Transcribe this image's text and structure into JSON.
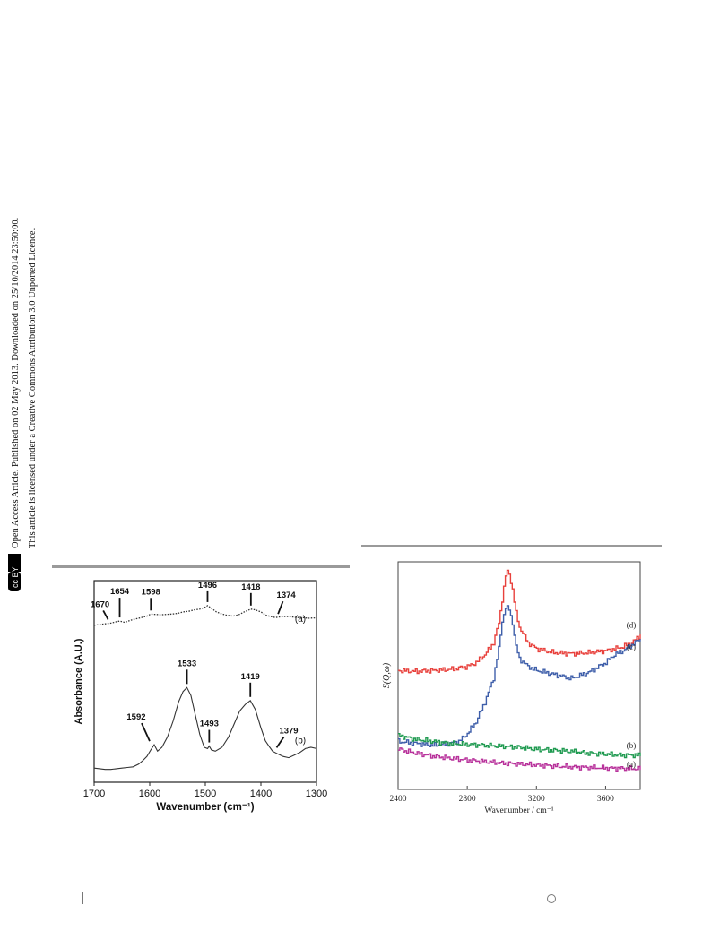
{
  "side_notice": {
    "line1": "Open Access Article. Published on 02 May 2013. Downloaded on 25/10/2014 23:50:00.",
    "line2": "This article is licensed under a Creative Commons Attribution 3.0 Unported Licence.",
    "license_badge": "cc BY"
  },
  "chart_data": [
    {
      "type": "line",
      "xlabel": "Wavenumber (cm⁻¹)",
      "ylabel": "Absorbance (A.U.)",
      "xlim": [
        1700,
        1300
      ],
      "x_reversed": true,
      "x_ticks": [
        1700,
        1600,
        1500,
        1400,
        1300
      ],
      "series": [
        {
          "name": "(a)",
          "style": "dotted",
          "x": [
            1700,
            1690,
            1680,
            1670,
            1660,
            1654,
            1645,
            1635,
            1625,
            1615,
            1605,
            1598,
            1590,
            1580,
            1570,
            1560,
            1550,
            1540,
            1530,
            1520,
            1510,
            1500,
            1496,
            1490,
            1480,
            1470,
            1460,
            1450,
            1440,
            1430,
            1418,
            1410,
            1400,
            1390,
            1380,
            1374,
            1365,
            1355,
            1345,
            1335,
            1325,
            1315,
            1305,
            1300
          ],
          "y": [
            0.58,
            0.59,
            0.6,
            0.61,
            0.63,
            0.64,
            0.62,
            0.65,
            0.67,
            0.69,
            0.71,
            0.74,
            0.735,
            0.73,
            0.735,
            0.74,
            0.75,
            0.77,
            0.78,
            0.8,
            0.81,
            0.84,
            0.86,
            0.83,
            0.77,
            0.74,
            0.72,
            0.71,
            0.73,
            0.77,
            0.81,
            0.8,
            0.77,
            0.72,
            0.7,
            0.69,
            0.7,
            0.705,
            0.7,
            0.69,
            0.69,
            0.68,
            0.685,
            0.68
          ]
        },
        {
          "name": "(b)",
          "style": "solid",
          "x": [
            1700,
            1690,
            1680,
            1670,
            1660,
            1650,
            1640,
            1630,
            1620,
            1612,
            1605,
            1598,
            1592,
            1586,
            1578,
            1568,
            1558,
            1548,
            1540,
            1533,
            1526,
            1518,
            1510,
            1502,
            1496,
            1493,
            1489,
            1482,
            1470,
            1458,
            1448,
            1438,
            1428,
            1419,
            1410,
            1400,
            1392,
            1384,
            1379,
            1370,
            1360,
            1350,
            1340,
            1330,
            1320,
            1310,
            1300
          ],
          "y": [
            0.04,
            0.035,
            0.03,
            0.03,
            0.035,
            0.04,
            0.045,
            0.05,
            0.07,
            0.1,
            0.13,
            0.18,
            0.22,
            0.17,
            0.2,
            0.28,
            0.4,
            0.55,
            0.63,
            0.66,
            0.6,
            0.45,
            0.3,
            0.2,
            0.19,
            0.21,
            0.18,
            0.17,
            0.2,
            0.28,
            0.38,
            0.48,
            0.53,
            0.56,
            0.49,
            0.35,
            0.25,
            0.2,
            0.17,
            0.15,
            0.13,
            0.12,
            0.14,
            0.16,
            0.19,
            0.2,
            0.19
          ]
        }
      ],
      "annotations": [
        {
          "label": "1670",
          "series": "(a)"
        },
        {
          "label": "1654",
          "series": "(a)"
        },
        {
          "label": "1598",
          "series": "(a)"
        },
        {
          "label": "1496",
          "series": "(a)"
        },
        {
          "label": "1418",
          "series": "(a)"
        },
        {
          "label": "1374",
          "series": "(a)"
        },
        {
          "label": "1592",
          "series": "(b)"
        },
        {
          "label": "1533",
          "series": "(b)"
        },
        {
          "label": "1493",
          "series": "(b)"
        },
        {
          "label": "1419",
          "series": "(b)"
        },
        {
          "label": "1379",
          "series": "(b)"
        }
      ]
    },
    {
      "type": "line",
      "xlabel": "Wavenumber / cm⁻¹",
      "ylabel": "S(Q,ω)",
      "xlim": [
        2400,
        3800
      ],
      "x_ticks": [
        2400,
        2800,
        3200,
        3600
      ],
      "series": [
        {
          "name": "(d)",
          "color": "#e8413c",
          "x": [
            2400,
            2500,
            2600,
            2700,
            2800,
            2850,
            2900,
            2950,
            2980,
            3000,
            3020,
            3030,
            3040,
            3060,
            3080,
            3100,
            3150,
            3200,
            3300,
            3400,
            3500,
            3600,
            3700,
            3750,
            3800
          ],
          "y": [
            0.54,
            0.535,
            0.54,
            0.545,
            0.56,
            0.58,
            0.62,
            0.68,
            0.78,
            0.9,
            1.02,
            1.04,
            1.03,
            0.95,
            0.83,
            0.76,
            0.68,
            0.65,
            0.63,
            0.625,
            0.63,
            0.64,
            0.66,
            0.68,
            0.72
          ]
        },
        {
          "name": "(c)",
          "color": "#3f5faa",
          "x": [
            2400,
            2500,
            2600,
            2700,
            2750,
            2800,
            2850,
            2900,
            2950,
            2980,
            3000,
            3020,
            3040,
            3060,
            3080,
            3100,
            3150,
            3200,
            3300,
            3400,
            3500,
            3600,
            3650,
            3700,
            3800
          ],
          "y": [
            0.18,
            0.17,
            0.16,
            0.17,
            0.18,
            0.22,
            0.28,
            0.38,
            0.5,
            0.65,
            0.79,
            0.86,
            0.85,
            0.78,
            0.66,
            0.6,
            0.56,
            0.54,
            0.52,
            0.5,
            0.53,
            0.58,
            0.62,
            0.64,
            0.7
          ]
        },
        {
          "name": "(b)",
          "color": "#1f9a50",
          "x": [
            2400,
            2500,
            2600,
            2700,
            2800,
            2900,
            3000,
            3100,
            3200,
            3300,
            3400,
            3500,
            3600,
            3700,
            3800
          ],
          "y": [
            0.21,
            0.19,
            0.18,
            0.17,
            0.165,
            0.16,
            0.155,
            0.15,
            0.14,
            0.135,
            0.13,
            0.12,
            0.115,
            0.11,
            0.11
          ]
        },
        {
          "name": "(a)",
          "color": "#b8329b",
          "x": [
            2400,
            2500,
            2600,
            2700,
            2800,
            2900,
            3000,
            3100,
            3200,
            3300,
            3400,
            3500,
            3600,
            3700,
            3800
          ],
          "y": [
            0.14,
            0.12,
            0.105,
            0.095,
            0.085,
            0.078,
            0.07,
            0.065,
            0.06,
            0.055,
            0.05,
            0.048,
            0.045,
            0.043,
            0.04
          ]
        }
      ]
    }
  ]
}
